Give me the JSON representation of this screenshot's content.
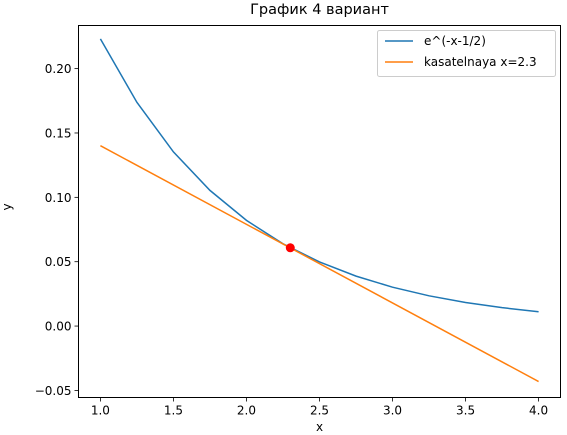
{
  "chart_data": {
    "type": "line",
    "title": "График 4 вариант",
    "xlabel": "x",
    "ylabel": "y",
    "xlim": [
      0.85,
      4.15
    ],
    "ylim": [
      -0.0555,
      0.2335
    ],
    "xticks": [
      1.0,
      1.5,
      2.0,
      2.5,
      3.0,
      3.5,
      4.0
    ],
    "xtick_labels": [
      "1.0",
      "1.5",
      "2.0",
      "2.5",
      "3.0",
      "3.5",
      "4.0"
    ],
    "yticks": [
      -0.05,
      0.0,
      0.05,
      0.1,
      0.15,
      0.2
    ],
    "ytick_labels": [
      "−0.05",
      "0.00",
      "0.05",
      "0.10",
      "0.15",
      "0.20"
    ],
    "grid": false,
    "legend_position": "top-right",
    "series": [
      {
        "name": "e^(-x-1/2)",
        "color": "#1f77b4",
        "x": [
          1.0,
          1.25,
          1.5,
          1.75,
          2.0,
          2.25,
          2.5,
          2.75,
          3.0,
          3.25,
          3.5,
          3.75,
          4.0
        ],
        "y": [
          0.2231,
          0.1738,
          0.1353,
          0.1054,
          0.0821,
          0.0639,
          0.0498,
          0.0388,
          0.0302,
          0.0235,
          0.0183,
          0.0143,
          0.0111
        ]
      },
      {
        "name": "kasatelnaya x=2.3",
        "color": "#ff7f0e",
        "x": [
          1.0,
          4.0
        ],
        "y": [
          0.1401,
          -0.0431
        ]
      }
    ],
    "points": [
      {
        "x": 2.3,
        "y": 0.0608,
        "color": "#ff0000"
      }
    ]
  }
}
